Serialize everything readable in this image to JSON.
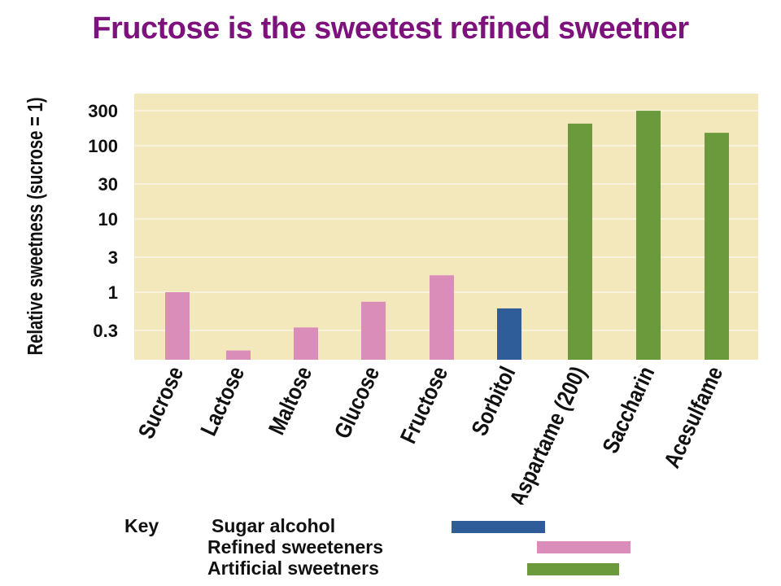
{
  "title": "Fructose is the sweetest refined sweetner",
  "colors": {
    "title": "#7d127d",
    "plot_bg": "#f3e7bc",
    "grid": "#fbf6e3",
    "refined": "#d98db8",
    "sugar_alcohol": "#2f5d9a",
    "artificial": "#6b9a3c"
  },
  "chart_data": {
    "type": "bar",
    "ylabel": "Relative sweetness (sucrose = 1)",
    "yscale": "log",
    "yticks": [
      0.3,
      1,
      3,
      10,
      30,
      100,
      300
    ],
    "ytick_labels": [
      "0.3",
      "1",
      "3",
      "10",
      "30",
      "100",
      "300"
    ],
    "ylim": [
      0.1,
      500
    ],
    "grid": true,
    "categories": [
      "Sucrose",
      "Lactose",
      "Maltose",
      "Glucose",
      "Fructose",
      "Sorbitol",
      "Aspartame (200)",
      "Saccharin",
      "Acesulfame"
    ],
    "values": [
      1,
      0.16,
      0.33,
      0.74,
      1.7,
      0.6,
      200,
      300,
      150
    ],
    "groups": [
      "refined",
      "refined",
      "refined",
      "refined",
      "refined",
      "sugar_alcohol",
      "artificial",
      "artificial",
      "artificial"
    ],
    "legend": {
      "title": "Key",
      "entries": [
        {
          "group": "sugar_alcohol",
          "label": "Sugar alcohol"
        },
        {
          "group": "refined",
          "label": "Refined sweeteners"
        },
        {
          "group": "artificial",
          "label": "Artificial sweetners"
        }
      ]
    }
  }
}
